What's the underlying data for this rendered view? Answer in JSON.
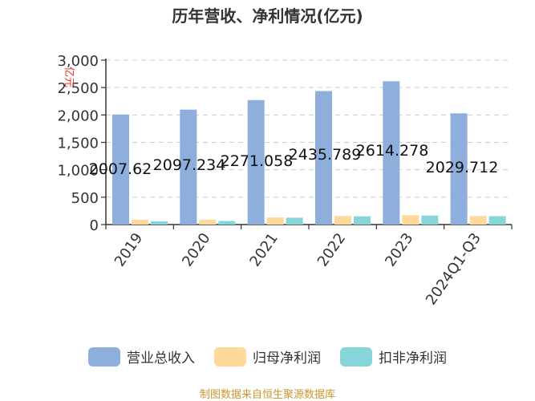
{
  "chart_data": {
    "type": "bar",
    "title": "历年营收、净利情况(亿元)",
    "ylabel": "亿元",
    "xlabel": "",
    "ylim": [
      0,
      3000
    ],
    "yticks": [
      0,
      500,
      1000,
      1500,
      2000,
      2500,
      3000
    ],
    "ytick_labels": [
      "0",
      "500",
      "1,000",
      "1,500",
      "2,000",
      "2,500",
      "3,000"
    ],
    "grid": true,
    "legend_position": "bottom",
    "categories": [
      "2019",
      "2020",
      "2021",
      "2022",
      "2023",
      "2024Q1-Q3"
    ],
    "series": [
      {
        "name": "营业总收入",
        "color": "#8eaedb",
        "values": [
          2007.62,
          2097.234,
          2271.058,
          2435.789,
          2614.278,
          2029.712
        ],
        "labels": [
          "2007.62",
          "2097.234",
          "2271.058",
          "2435.789",
          "2614.278",
          "2029.712"
        ]
      },
      {
        "name": "归母净利润",
        "color": "#ffd99a",
        "values": [
          88,
          90,
          130,
          155,
          170,
          155
        ]
      },
      {
        "name": "扣非净利润",
        "color": "#86d5d8",
        "values": [
          60,
          65,
          125,
          150,
          165,
          153
        ]
      }
    ]
  },
  "footer": {
    "source": "制图数据来自恒生聚源数据库"
  }
}
